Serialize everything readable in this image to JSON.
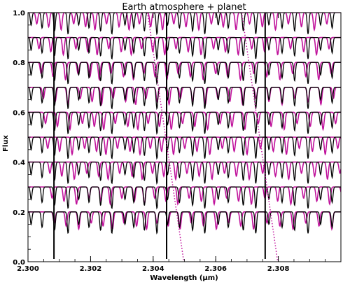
{
  "chart_data": {
    "type": "line",
    "title": "Earth atmosphere + planet",
    "xlabel": "Wavelength (μm)",
    "ylabel": "Flux",
    "xlim": [
      2.3,
      2.31
    ],
    "ylim": [
      0.0,
      1.0
    ],
    "x_ticks": [
      {
        "value": 2.3,
        "label": "2.300"
      },
      {
        "value": 2.302,
        "label": "2.302"
      },
      {
        "value": 2.304,
        "label": "2.304"
      },
      {
        "value": 2.306,
        "label": "2.306"
      },
      {
        "value": 2.308,
        "label": "2.308"
      }
    ],
    "y_ticks": [
      {
        "value": 0.0,
        "label": "0.0"
      },
      {
        "value": 0.2,
        "label": "0.2"
      },
      {
        "value": 0.4,
        "label": "0.4"
      },
      {
        "value": 0.6,
        "label": "0.6"
      },
      {
        "value": 0.8,
        "label": "0.8"
      },
      {
        "value": 1.0,
        "label": "1.0"
      }
    ],
    "grid": false,
    "spectra_continuum_levels": [
      1.0,
      0.9,
      0.8,
      0.7,
      0.6,
      0.5,
      0.4,
      0.3,
      0.2
    ],
    "telluric_color": "#000000",
    "planet_color": "#c0139c",
    "telluric_lines_x": [
      2.3001,
      2.30045,
      2.30085,
      2.30128,
      2.30162,
      2.30195,
      2.30232,
      2.30268,
      2.3031,
      2.30338,
      2.30372,
      2.30412,
      2.30446,
      2.30484,
      2.30526,
      2.30565,
      2.30608,
      2.3064,
      2.30688,
      2.30728,
      2.3077,
      2.30812,
      2.30852,
      2.30895,
      2.30935,
      2.30972
    ],
    "strong_telluric_lines_x": [
      2.30083,
      2.30443,
      2.30758
    ],
    "planet_lines_rest_x": [
      2.30028,
      2.30066,
      2.30106,
      2.30146,
      2.30184,
      2.30214,
      2.30251,
      2.30291,
      2.30323,
      2.30356,
      2.30392,
      2.3043,
      2.30466,
      2.30505,
      2.30546,
      2.30586,
      2.30624,
      2.30665,
      2.30708,
      2.30749,
      2.30791,
      2.30832,
      2.30874,
      2.30915,
      2.30955
    ],
    "planet_line_shifts": [
      0.0,
      7e-05,
      0.00014,
      0.00021,
      0.00028,
      0.00035,
      0.00042,
      0.00049,
      0.00056
    ],
    "planet_shift_tracks": [
      {
        "x": [
          2.30382,
          2.30498
        ],
        "y": [
          1.0,
          0.0
        ]
      },
      {
        "x": [
          2.30683,
          2.30798
        ],
        "y": [
          1.0,
          0.0
        ]
      }
    ]
  }
}
